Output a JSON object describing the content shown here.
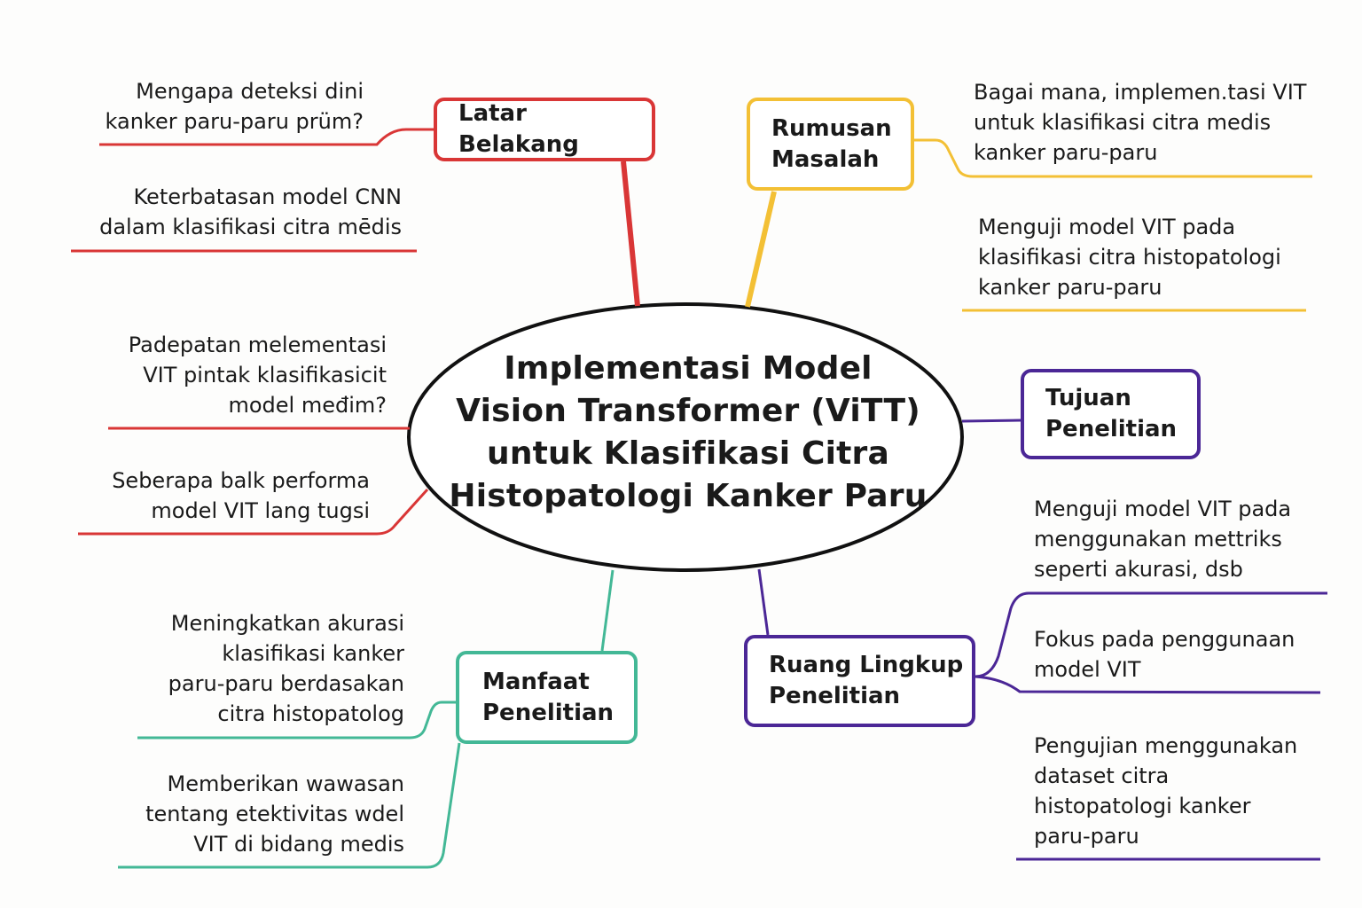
{
  "colors": {
    "latar": "#d93636",
    "rumusan": "#f3c035",
    "tujuan": "#4b2796",
    "ruang": "#4b2796",
    "manfaat": "#43b896"
  },
  "center": {
    "lines": [
      "Implementasi Model",
      "Vision Transformer (ViTT)",
      "untuk Klasifikasi Citra",
      "Histopatologi Kanker Paru"
    ]
  },
  "branches": {
    "latar": {
      "label": "Latar Belakang",
      "notes": [
        "Mengapa deteksi dini\nkanker paru-paru prüm?",
        "Keterbatasan model CNN\ndalam klasifikasi citra mēdis",
        "Padepatan melementasi\nVIT pintak klasifikasicit\nmodel međim?",
        "Seberapa balk performa\nmodel VIT lang tugsi"
      ]
    },
    "rumusan": {
      "label": "Rumusan\nMasalah",
      "notes": [
        "Bagai mana, implemen.tasi VIT\nuntuk klasifikasi citra medis\nkanker paru-paru",
        "Menguji model VIT pada\nklasifikasi citra histopatologi\nkanker paru-paru"
      ]
    },
    "tujuan": {
      "label": "Tujuan\nPenelitian"
    },
    "ruang": {
      "label": "Ruang Lingkup\nPenelitian",
      "notes": [
        "Menguji model VIT pada\nmenggunakan mettriks\nseperti akurasi, dsb",
        "Fokus pada penggunaan\nmodel VIT",
        "Pengujian menggunakan\ndataset citra\nhistopatologi kanker\nparu-paru"
      ]
    },
    "manfaat": {
      "label": "Manfaat\nPenelitian",
      "notes": [
        "Meningkatkan akurasi\nklasifikasi kanker\nparu-paru berdasakan\ncitra histopatolog",
        "Memberikan wawasan\ntentang etektivitas wdel\nVIT di bidang medis"
      ]
    }
  }
}
